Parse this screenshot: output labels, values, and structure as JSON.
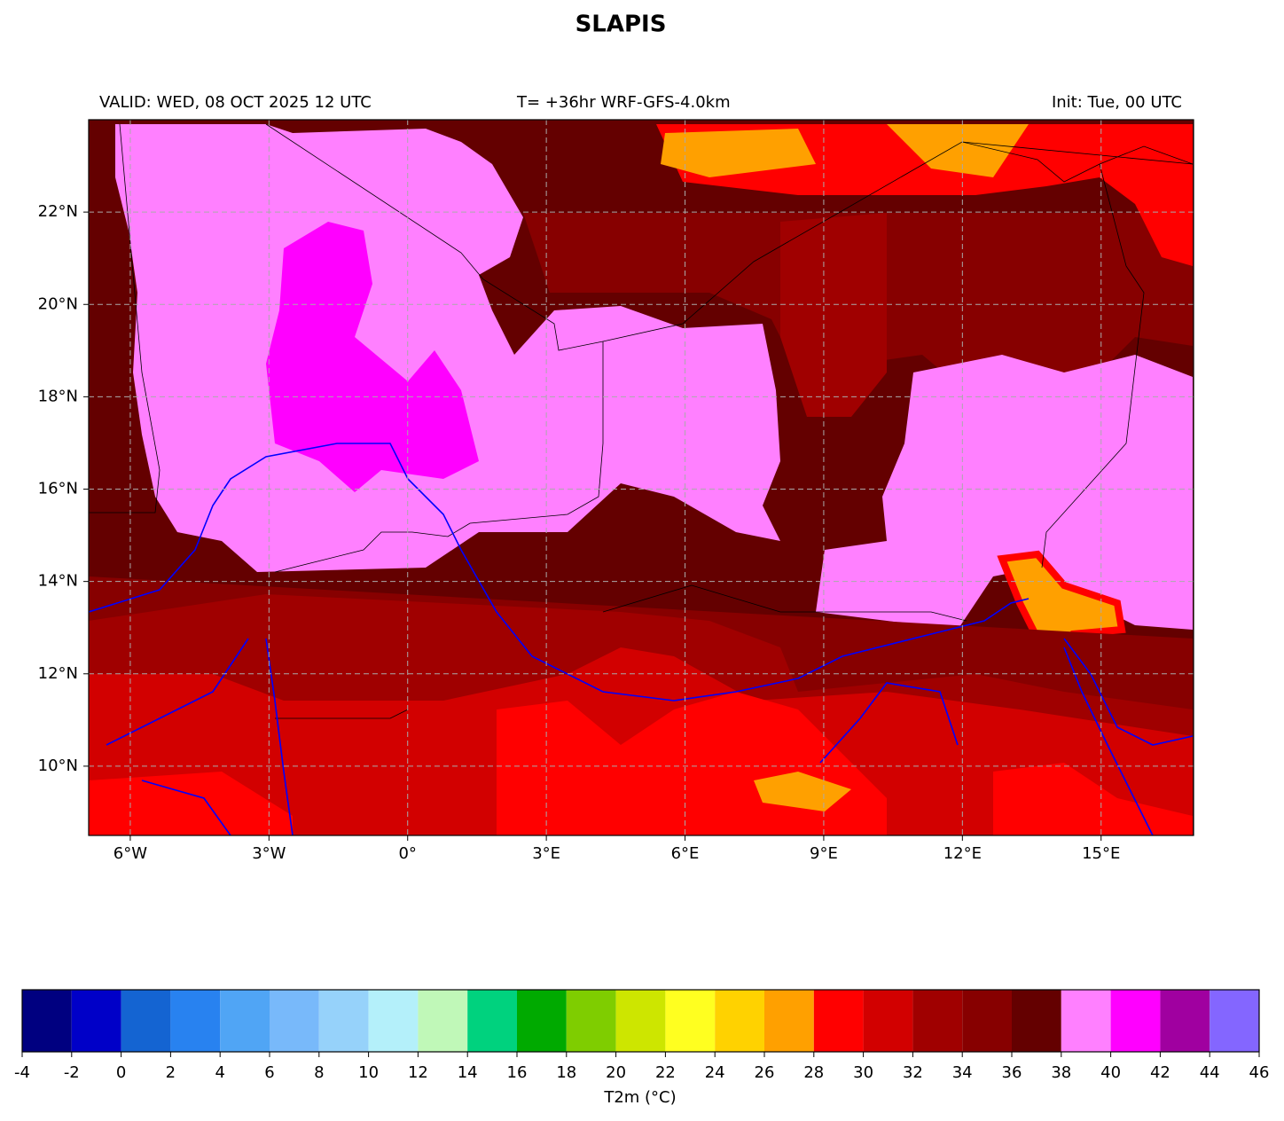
{
  "title": "SLAPIS",
  "header": {
    "valid": "VALID: WED, 08 OCT 2025 12 UTC",
    "forecast": "T= +36hr WRF-GFS-4.0km",
    "init": "Init: Tue, 00 UTC"
  },
  "map": {
    "xlim": [
      -6.9,
      17
    ],
    "ylim": [
      8.5,
      24
    ],
    "xticks": [
      {
        "value": -6,
        "label": "6°W"
      },
      {
        "value": -3,
        "label": "3°W"
      },
      {
        "value": 0,
        "label": "0°"
      },
      {
        "value": 3,
        "label": "3°E"
      },
      {
        "value": 6,
        "label": "6°E"
      },
      {
        "value": 9,
        "label": "9°E"
      },
      {
        "value": 12,
        "label": "12°E"
      },
      {
        "value": 15,
        "label": "15°E"
      }
    ],
    "yticks": [
      {
        "value": 10,
        "label": "10°N"
      },
      {
        "value": 12,
        "label": "12°N"
      },
      {
        "value": 14,
        "label": "14°N"
      },
      {
        "value": 16,
        "label": "16°N"
      },
      {
        "value": 18,
        "label": "18°N"
      },
      {
        "value": 20,
        "label": "20°N"
      },
      {
        "value": 22,
        "label": "22°N"
      }
    ],
    "grid": true
  },
  "colorbar": {
    "label": "T2m (°C)",
    "levels": [
      -4,
      -2,
      0,
      2,
      4,
      6,
      8,
      10,
      12,
      14,
      16,
      18,
      20,
      22,
      24,
      26,
      28,
      30,
      32,
      34,
      36,
      38,
      40,
      42,
      44,
      46
    ],
    "colors": [
      "#000080",
      "#0000c8",
      "#1464d2",
      "#2882f0",
      "#50a5f5",
      "#78b9fa",
      "#96d2fa",
      "#b4f0fa",
      "#c0f8b8",
      "#00d27e",
      "#00aa00",
      "#7fcd00",
      "#cde600",
      "#ffff20",
      "#ffd200",
      "#ffa000",
      "#ff0000",
      "#d20000",
      "#a00000",
      "#870000",
      "#640000",
      "#ff80ff",
      "#ff00ff",
      "#a000a0",
      "#8466ff"
    ]
  }
}
